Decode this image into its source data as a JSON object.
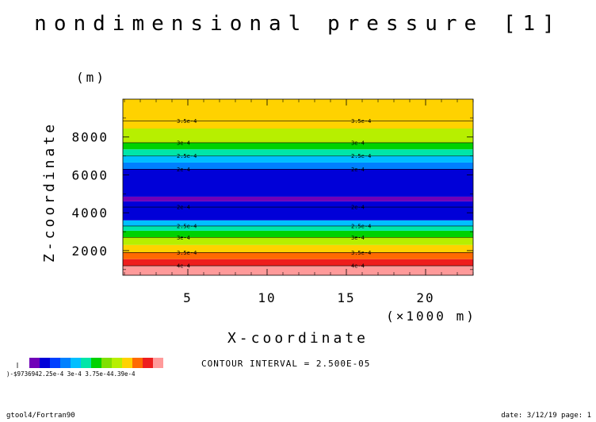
{
  "chart_data": {
    "type": "heatmap",
    "title": "nondimensional pressure [1]",
    "y_unit_label": "(m)",
    "ylabel": "Z-coordinate",
    "xlabel": "X-coordinate",
    "x_unit_label": "(×1000 m)",
    "xlim": [
      0.9,
      23.0
    ],
    "ylim": [
      700,
      10000
    ],
    "x_ticks": [
      5,
      10,
      15,
      20
    ],
    "y_ticks": [
      2000,
      4000,
      6000,
      8000
    ],
    "contour_interval_text": "CONTOUR INTERVAL = 2.500E-05",
    "bands": [
      {
        "z0": 700,
        "z1": 1200,
        "color": "#ff9a9a"
      },
      {
        "z0": 1200,
        "z1": 1550,
        "color": "#ee1d1d"
      },
      {
        "z0": 1550,
        "z1": 1900,
        "color": "#ff6a00"
      },
      {
        "z0": 1900,
        "z1": 2300,
        "color": "#ffd200"
      },
      {
        "z0": 2300,
        "z1": 2700,
        "color": "#b7ef00"
      },
      {
        "z0": 2700,
        "z1": 3050,
        "color": "#00d200"
      },
      {
        "z0": 3050,
        "z1": 3300,
        "color": "#00e6a8"
      },
      {
        "z0": 3300,
        "z1": 3600,
        "color": "#00bfff"
      },
      {
        "z0": 3600,
        "z1": 4600,
        "color": "#0000d8"
      },
      {
        "z0": 4600,
        "z1": 4850,
        "color": "#7000b8"
      },
      {
        "z0": 4850,
        "z1": 6300,
        "color": "#0000d8"
      },
      {
        "z0": 6300,
        "z1": 6650,
        "color": "#0080ff"
      },
      {
        "z0": 6650,
        "z1": 7000,
        "color": "#00bfff"
      },
      {
        "z0": 7000,
        "z1": 7350,
        "color": "#00e6a8"
      },
      {
        "z0": 7350,
        "z1": 7700,
        "color": "#00d200"
      },
      {
        "z0": 7700,
        "z1": 8450,
        "color": "#b7ef00"
      },
      {
        "z0": 8450,
        "z1": 8850,
        "color": "#ffd200"
      },
      {
        "z0": 8850,
        "z1": 10000,
        "color": "#ffd200"
      }
    ],
    "contours": [
      {
        "z": 1200,
        "label": "4e-4"
      },
      {
        "z": 1900,
        "label": "3.5e-4"
      },
      {
        "z": 2700,
        "label": "3e-4"
      },
      {
        "z": 3300,
        "label": "2.5e-4"
      },
      {
        "z": 4300,
        "label": "2e-4"
      },
      {
        "z": 6300,
        "label": "2e-4"
      },
      {
        "z": 7000,
        "label": "2.5e-4"
      },
      {
        "z": 7700,
        "label": "3e-4"
      },
      {
        "z": 8850,
        "label": "3.5e-4"
      }
    ],
    "contour_label_x": [
      5,
      16
    ],
    "legend": {
      "colors": [
        "#7000b8",
        "#0000d8",
        "#0040ff",
        "#0080ff",
        "#00bfff",
        "#00e6a8",
        "#00d200",
        "#7fe000",
        "#b7ef00",
        "#ffd200",
        "#ff6a00",
        "#ee1d1d",
        "#ff9a9a"
      ],
      "labels_text": ")-$9736942.25e-4  3e-4  3.75e-44.39e-4"
    }
  },
  "footer": {
    "left": "gtool4/Fortran90",
    "right": "date: 3/12/19 page: 1"
  }
}
